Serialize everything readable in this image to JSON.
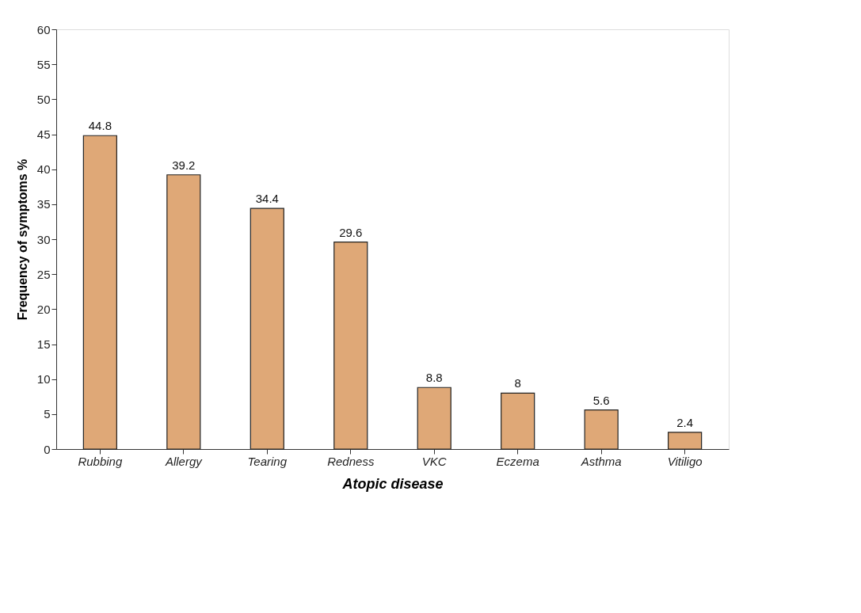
{
  "chart_data": {
    "type": "bar",
    "xlabel": "Atopic disease",
    "ylabel": "Frequency of symptoms %",
    "categories": [
      "Rubbing",
      "Allergy",
      "Tearing",
      "Redness",
      "VKC",
      "Eczema",
      "Asthma",
      "Vitiligo"
    ],
    "values": [
      44.8,
      39.2,
      34.4,
      29.6,
      8.8,
      8,
      5.6,
      2.4
    ],
    "color": "#dfa877",
    "ylim": [
      0,
      60
    ],
    "yticks": [
      0,
      5,
      10,
      15,
      20,
      25,
      30,
      35,
      40,
      45,
      50,
      55,
      60
    ],
    "grid": false,
    "data_labels": true
  }
}
